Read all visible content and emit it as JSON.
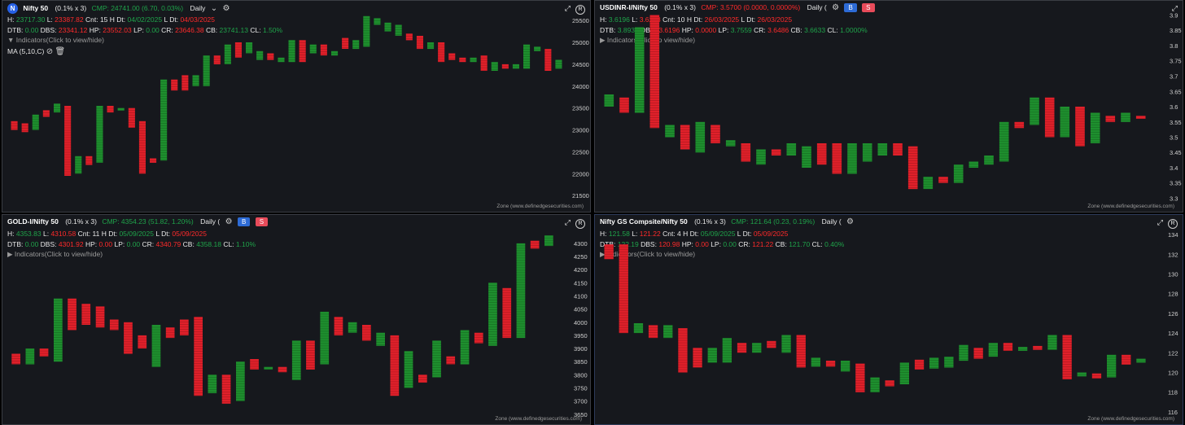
{
  "panels": [
    {
      "key": "p1",
      "badge": "N",
      "title": "Nifty 50",
      "box": "(0.1% x 3)",
      "cmp": "CMP: 24741.00 (6.70, 0.03%)",
      "tf": "Daily",
      "buy": "",
      "sell": "",
      "h_label": "H:",
      "h": "23717.30",
      "l_label": "L:",
      "l": "23387.82",
      "cnt": "Cnt: 15 H Dt:",
      "hdt": "04/02/2025",
      "ldt_label": "L Dt:",
      "ldt": "04/03/2025",
      "dtb_label": "DTB:",
      "dtb": "0.00",
      "dbs_label": "DBS:",
      "dbs": "23341.12",
      "hp_label": "HP:",
      "hp": "23552.03",
      "lp_label": "LP:",
      "lp": "0.00",
      "cr_label": "CR:",
      "cr": "23646.38",
      "cb_label": "CB:",
      "cb": "23741.13",
      "cl_label": "CL:",
      "cl": "1.50%",
      "indicators": "Indicators(Click to view/hide)",
      "ma": "MA (5,10,C)",
      "zone": "Zone (www.definedgesecurities.com)",
      "ticks": [
        "25500",
        "25000",
        "24500",
        "24000",
        "23500",
        "23000",
        "22500",
        "22000",
        "21500"
      ]
    },
    {
      "key": "p2",
      "badge": "",
      "title": "USDINR-I/Nifty 50",
      "box": "(0.1% x 3)",
      "cmp": "CMP: 3.5700 (0.0000, 0.0000%)",
      "tf": "Daily (",
      "buy": "B",
      "sell": "S",
      "h_label": "H:",
      "h": "3.6196",
      "l_label": "L:",
      "l": "3.6268",
      "cnt": "Cnt: 10 H Dt:",
      "hdt": "26/03/2025",
      "ldt_label": "L Dt:",
      "ldt": "26/03/2025",
      "dtb_label": "DTB:",
      "dtb": "3.8936",
      "dbs_label": "DBS:",
      "dbs": "3.6196",
      "hp_label": "HP:",
      "hp": "0.0000",
      "lp_label": "LP:",
      "lp": "3.7559",
      "cr_label": "CR:",
      "cr": "3.6486",
      "cb_label": "CB:",
      "cb": "3.6633",
      "cl_label": "CL:",
      "cl": "1.0000%",
      "indicators": "Indicators(Click to view/hide)",
      "ma": "",
      "zone": "Zone (www.definedgesecurities.com)",
      "ticks": [
        "3.9",
        "3.85",
        "3.8",
        "3.75",
        "3.7",
        "3.65",
        "3.6",
        "3.55",
        "3.5",
        "3.45",
        "3.4",
        "3.35",
        "3.3"
      ]
    },
    {
      "key": "p3",
      "badge": "",
      "title": "GOLD-I/Nifty 50",
      "box": "(0.1% x 3)",
      "cmp": "CMP: 4354.23 (51.82, 1.20%)",
      "tf": "Daily (",
      "buy": "B",
      "sell": "S",
      "h_label": "H:",
      "h": "4353.83",
      "l_label": "L:",
      "l": "4310.58",
      "cnt": "Cnt: 11 H Dt:",
      "hdt": "05/09/2025",
      "ldt_label": "L Dt:",
      "ldt": "05/09/2025",
      "dtb_label": "DTB:",
      "dtb": "0.00",
      "dbs_label": "DBS:",
      "dbs": "4301.92",
      "hp_label": "HP:",
      "hp": "0.00",
      "lp_label": "LP:",
      "lp": "0.00",
      "cr_label": "CR:",
      "cr": "4340.79",
      "cb_label": "CB:",
      "cb": "4358.18",
      "cl_label": "CL:",
      "cl": "1.10%",
      "indicators": "Indicators(Click to view/hide)",
      "ma": "",
      "zone": "Zone (www.definedgesecurities.com)",
      "ticks": [
        "4300",
        "4250",
        "4200",
        "4150",
        "4100",
        "4050",
        "4000",
        "3950",
        "3900",
        "3850",
        "3800",
        "3750",
        "3700",
        "3650"
      ]
    },
    {
      "key": "p4",
      "badge": "",
      "title": "Nifty GS Compsite/Nifty 50",
      "box": "(0.1% x 3)",
      "cmp": "CMP: 121.64 (0.23, 0.19%)",
      "tf": "Daily (",
      "buy": "",
      "sell": "",
      "h_label": "H:",
      "h": "121.58",
      "l_label": "L:",
      "l": "121.22",
      "cnt": "Cnt: 4 H Dt:",
      "hdt": "05/09/2025",
      "ldt_label": "L Dt:",
      "ldt": "05/09/2025",
      "dtb_label": "DTB:",
      "dtb": "122.19",
      "dbs_label": "DBS:",
      "dbs": "120.98",
      "hp_label": "HP:",
      "hp": "0.00",
      "lp_label": "LP:",
      "lp": "0.00",
      "cr_label": "CR:",
      "cr": "121.22",
      "cb_label": "CB:",
      "cb": "121.70",
      "cl_label": "CL:",
      "cl": "0.40%",
      "indicators": "Indicators(Click to view/hide)",
      "ma": "",
      "zone": "Zone (www.definedgesecurities.com)",
      "ticks": [
        "134",
        "132",
        "130",
        "128",
        "126",
        "124",
        "122",
        "120",
        "118",
        "116"
      ]
    }
  ],
  "colors": {
    "up": "#1e8f2e",
    "down": "#e0202a",
    "bg": "#16181d"
  },
  "chart_data": [
    {
      "type": "bar",
      "title": "Nifty 50",
      "ylim": [
        21300,
        25800
      ],
      "series": [
        {
          "name": "bricks",
          "values": [
            [
              23000,
              23200,
              "d"
            ],
            [
              22950,
              23150,
              "d"
            ],
            [
              23000,
              23350,
              "u"
            ],
            [
              23300,
              23450,
              "d"
            ],
            [
              23400,
              23600,
              "u"
            ],
            [
              21950,
              23550,
              "d"
            ],
            [
              22000,
              22400,
              "u"
            ],
            [
              22200,
              22400,
              "d"
            ],
            [
              22250,
              23550,
              "u"
            ],
            [
              23400,
              23550,
              "d"
            ],
            [
              23450,
              23500,
              "u"
            ],
            [
              23050,
              23500,
              "d"
            ],
            [
              22000,
              23200,
              "d"
            ],
            [
              22250,
              22350,
              "d"
            ],
            [
              22300,
              24150,
              "u"
            ],
            [
              23900,
              24150,
              "d"
            ],
            [
              23900,
              24250,
              "d"
            ],
            [
              24000,
              24250,
              "u"
            ],
            [
              24000,
              24700,
              "u"
            ],
            [
              24500,
              24700,
              "d"
            ],
            [
              24500,
              24950,
              "u"
            ],
            [
              24650,
              25000,
              "d"
            ],
            [
              24750,
              25000,
              "u"
            ],
            [
              24600,
              24800,
              "u"
            ],
            [
              24600,
              24750,
              "d"
            ],
            [
              24550,
              24650,
              "u"
            ],
            [
              24550,
              25050,
              "u"
            ],
            [
              24550,
              25050,
              "d"
            ],
            [
              24750,
              24950,
              "u"
            ],
            [
              24700,
              24950,
              "d"
            ],
            [
              24700,
              24800,
              "u"
            ],
            [
              24850,
              25100,
              "d"
            ],
            [
              24850,
              25050,
              "u"
            ],
            [
              24900,
              25600,
              "u"
            ],
            [
              25400,
              25550,
              "u"
            ],
            [
              25250,
              25450,
              "u"
            ],
            [
              25150,
              25400,
              "u"
            ],
            [
              25050,
              25200,
              "d"
            ],
            [
              24850,
              25150,
              "d"
            ],
            [
              24850,
              25000,
              "u"
            ],
            [
              24550,
              25000,
              "d"
            ],
            [
              24600,
              24750,
              "d"
            ],
            [
              24550,
              24650,
              "d"
            ],
            [
              24550,
              24650,
              "u"
            ],
            [
              24350,
              24700,
              "d"
            ],
            [
              24350,
              24550,
              "u"
            ],
            [
              24400,
              24500,
              "d"
            ],
            [
              24400,
              24500,
              "u"
            ],
            [
              24400,
              24950,
              "u"
            ],
            [
              24800,
              24900,
              "u"
            ],
            [
              24350,
              24850,
              "d"
            ],
            [
              24400,
              24600,
              "u"
            ]
          ]
        }
      ]
    },
    {
      "type": "bar",
      "title": "USDINR-I/Nifty 50",
      "ylim": [
        3.28,
        3.92
      ],
      "series": [
        {
          "name": "bricks",
          "values": [
            [
              3.6,
              3.64,
              "u"
            ],
            [
              3.58,
              3.63,
              "d"
            ],
            [
              3.58,
              3.86,
              "u"
            ],
            [
              3.53,
              3.9,
              "d"
            ],
            [
              3.5,
              3.54,
              "u"
            ],
            [
              3.46,
              3.54,
              "d"
            ],
            [
              3.45,
              3.55,
              "u"
            ],
            [
              3.48,
              3.54,
              "d"
            ],
            [
              3.47,
              3.49,
              "u"
            ],
            [
              3.42,
              3.48,
              "d"
            ],
            [
              3.41,
              3.46,
              "u"
            ],
            [
              3.44,
              3.46,
              "d"
            ],
            [
              3.44,
              3.48,
              "u"
            ],
            [
              3.4,
              3.47,
              "u"
            ],
            [
              3.41,
              3.48,
              "d"
            ],
            [
              3.38,
              3.48,
              "d"
            ],
            [
              3.38,
              3.48,
              "u"
            ],
            [
              3.42,
              3.48,
              "u"
            ],
            [
              3.44,
              3.48,
              "u"
            ],
            [
              3.44,
              3.48,
              "d"
            ],
            [
              3.33,
              3.47,
              "d"
            ],
            [
              3.33,
              3.37,
              "u"
            ],
            [
              3.35,
              3.37,
              "d"
            ],
            [
              3.35,
              3.41,
              "u"
            ],
            [
              3.4,
              3.42,
              "u"
            ],
            [
              3.41,
              3.44,
              "u"
            ],
            [
              3.42,
              3.55,
              "u"
            ],
            [
              3.53,
              3.55,
              "d"
            ],
            [
              3.54,
              3.63,
              "u"
            ],
            [
              3.5,
              3.63,
              "d"
            ],
            [
              3.5,
              3.6,
              "u"
            ],
            [
              3.47,
              3.6,
              "d"
            ],
            [
              3.48,
              3.58,
              "u"
            ],
            [
              3.55,
              3.57,
              "d"
            ],
            [
              3.55,
              3.58,
              "u"
            ],
            [
              3.56,
              3.57,
              "d"
            ]
          ]
        }
      ]
    },
    {
      "type": "bar",
      "title": "GOLD-I/Nifty 50",
      "ylim": [
        3640,
        4340
      ],
      "series": [
        {
          "name": "bricks",
          "values": [
            [
              3840,
              3880,
              "d"
            ],
            [
              3840,
              3900,
              "u"
            ],
            [
              3870,
              3900,
              "d"
            ],
            [
              3850,
              4090,
              "u"
            ],
            [
              3970,
              4090,
              "d"
            ],
            [
              3990,
              4070,
              "d"
            ],
            [
              3980,
              4060,
              "d"
            ],
            [
              3970,
              4010,
              "d"
            ],
            [
              3880,
              4000,
              "d"
            ],
            [
              3900,
              3950,
              "d"
            ],
            [
              3830,
              3990,
              "u"
            ],
            [
              3940,
              3980,
              "d"
            ],
            [
              3950,
              4010,
              "d"
            ],
            [
              3720,
              4020,
              "d"
            ],
            [
              3730,
              3800,
              "u"
            ],
            [
              3690,
              3800,
              "d"
            ],
            [
              3700,
              3850,
              "u"
            ],
            [
              3820,
              3860,
              "d"
            ],
            [
              3820,
              3830,
              "u"
            ],
            [
              3810,
              3830,
              "d"
            ],
            [
              3780,
              3930,
              "u"
            ],
            [
              3820,
              3930,
              "d"
            ],
            [
              3840,
              4040,
              "u"
            ],
            [
              3950,
              4020,
              "d"
            ],
            [
              3960,
              4000,
              "u"
            ],
            [
              3930,
              3990,
              "d"
            ],
            [
              3910,
              3960,
              "u"
            ],
            [
              3720,
              3950,
              "d"
            ],
            [
              3750,
              3890,
              "u"
            ],
            [
              3770,
              3800,
              "d"
            ],
            [
              3790,
              3930,
              "u"
            ],
            [
              3840,
              3870,
              "d"
            ],
            [
              3840,
              3970,
              "u"
            ],
            [
              3920,
              3960,
              "d"
            ],
            [
              3910,
              4150,
              "u"
            ],
            [
              3940,
              4130,
              "d"
            ],
            [
              3940,
              4300,
              "u"
            ],
            [
              4280,
              4310,
              "d"
            ],
            [
              4290,
              4330,
              "u"
            ]
          ]
        }
      ]
    },
    {
      "type": "bar",
      "title": "Nifty GS Compsite/Nifty 50",
      "ylim": [
        115.5,
        135
      ],
      "series": [
        {
          "name": "bricks",
          "values": [
            [
              131.5,
              133,
              "d"
            ],
            [
              124,
              133,
              "d"
            ],
            [
              124,
              125,
              "u"
            ],
            [
              123.5,
              124.8,
              "d"
            ],
            [
              123.5,
              124.8,
              "u"
            ],
            [
              120,
              124.5,
              "d"
            ],
            [
              120.5,
              122.5,
              "d"
            ],
            [
              121,
              122.5,
              "u"
            ],
            [
              121,
              123.5,
              "u"
            ],
            [
              122,
              123,
              "d"
            ],
            [
              122,
              123,
              "u"
            ],
            [
              122.5,
              123.2,
              "d"
            ],
            [
              122,
              123.8,
              "u"
            ],
            [
              120.5,
              123.8,
              "d"
            ],
            [
              120.6,
              121.5,
              "u"
            ],
            [
              120.6,
              121.2,
              "d"
            ],
            [
              120.1,
              121.2,
              "u"
            ],
            [
              118,
              120.9,
              "d"
            ],
            [
              118,
              119.5,
              "u"
            ],
            [
              118.6,
              119.2,
              "d"
            ],
            [
              118.8,
              121,
              "u"
            ],
            [
              120.3,
              121.3,
              "d"
            ],
            [
              120.4,
              121.5,
              "u"
            ],
            [
              120.5,
              121.6,
              "u"
            ],
            [
              121.2,
              122.8,
              "u"
            ],
            [
              121.4,
              122.5,
              "d"
            ],
            [
              121.6,
              123,
              "u"
            ],
            [
              122.2,
              123,
              "d"
            ],
            [
              122.2,
              122.6,
              "u"
            ],
            [
              122.3,
              122.7,
              "d"
            ],
            [
              122.3,
              123.8,
              "u"
            ],
            [
              119.3,
              123.8,
              "d"
            ],
            [
              119.6,
              120,
              "u"
            ],
            [
              119.4,
              119.9,
              "d"
            ],
            [
              119.5,
              121.8,
              "u"
            ],
            [
              120.8,
              121.8,
              "d"
            ],
            [
              121,
              121.4,
              "u"
            ]
          ]
        }
      ]
    }
  ]
}
